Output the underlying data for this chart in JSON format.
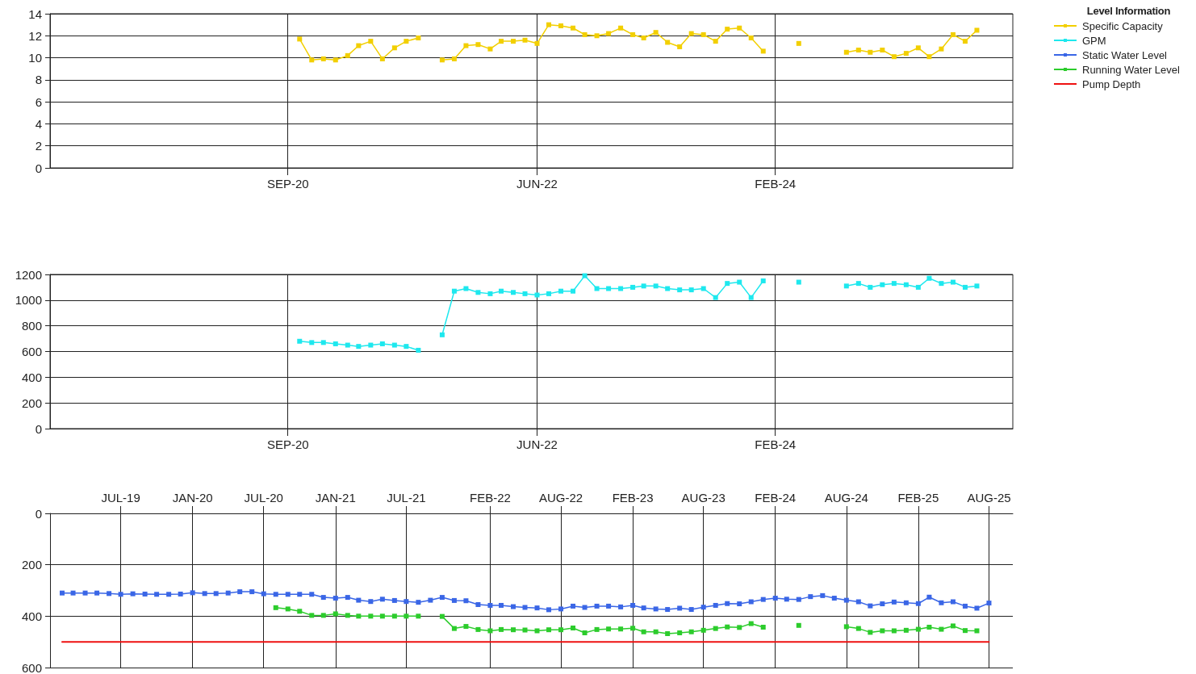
{
  "chart_data": [
    {
      "type": "line",
      "legend": "right",
      "legend_title": "Level Information",
      "grid": true,
      "marker": "square",
      "x": [
        "2020-10",
        "2020-11",
        "2020-12",
        "2021-01",
        "2021-02",
        "2021-03",
        "2021-04",
        "2021-05",
        "2021-06",
        "2021-07",
        "2021-08",
        "2021-09",
        "2021-10",
        "2021-11",
        "2021-12",
        "2022-01",
        "2022-02",
        "2022-03",
        "2022-04",
        "2022-05",
        "2022-06",
        "2022-07",
        "2022-08",
        "2022-09",
        "2022-10",
        "2022-11",
        "2022-12",
        "2023-01",
        "2023-02",
        "2023-03",
        "2023-04",
        "2023-05",
        "2023-06",
        "2023-07",
        "2023-08",
        "2023-09",
        "2023-10",
        "2023-11",
        "2023-12",
        "2024-01",
        "2024-02",
        "2024-03",
        "2024-04",
        "2024-05",
        "2024-06",
        "2024-07",
        "2024-08",
        "2024-09",
        "2024-10",
        "2024-11",
        "2024-12",
        "2025-01",
        "2025-02",
        "2025-03",
        "2025-04",
        "2025-05",
        "2025-06",
        "2025-07"
      ],
      "xlim": [
        "2019-01",
        "2025-10"
      ],
      "xticks": [
        {
          "value": "2020-09",
          "label": "SEP-20"
        },
        {
          "value": "2022-06",
          "label": "JUN-22"
        },
        {
          "value": "2024-02",
          "label": "FEB-24"
        }
      ],
      "ylim": [
        0,
        14
      ],
      "yticks": [
        0,
        2,
        4,
        6,
        8,
        10,
        12,
        14
      ],
      "series": [
        {
          "name": "Specific Capacity",
          "color": "#f2cf00",
          "values": [
            11.7,
            9.8,
            9.9,
            9.8,
            10.2,
            11.1,
            11.5,
            9.9,
            10.9,
            11.5,
            11.8,
            null,
            9.8,
            9.9,
            11.1,
            11.2,
            10.8,
            11.5,
            11.5,
            11.6,
            11.3,
            13.0,
            12.9,
            12.7,
            12.1,
            12.0,
            12.2,
            12.7,
            12.1,
            11.8,
            12.3,
            11.4,
            11.0,
            12.2,
            12.1,
            11.5,
            12.6,
            12.7,
            11.8,
            10.6,
            null,
            null,
            11.3,
            null,
            null,
            null,
            10.5,
            10.7,
            10.5,
            10.7,
            10.1,
            10.4,
            10.9,
            10.1,
            10.8,
            12.1,
            11.5,
            12.5
          ]
        }
      ]
    },
    {
      "type": "line",
      "legend": "right",
      "grid": true,
      "marker": "square",
      "x": [
        "2020-10",
        "2020-11",
        "2020-12",
        "2021-01",
        "2021-02",
        "2021-03",
        "2021-04",
        "2021-05",
        "2021-06",
        "2021-07",
        "2021-08",
        "2021-09",
        "2021-10",
        "2021-11",
        "2021-12",
        "2022-01",
        "2022-02",
        "2022-03",
        "2022-04",
        "2022-05",
        "2022-06",
        "2022-07",
        "2022-08",
        "2022-09",
        "2022-10",
        "2022-11",
        "2022-12",
        "2023-01",
        "2023-02",
        "2023-03",
        "2023-04",
        "2023-05",
        "2023-06",
        "2023-07",
        "2023-08",
        "2023-09",
        "2023-10",
        "2023-11",
        "2023-12",
        "2024-01",
        "2024-02",
        "2024-03",
        "2024-04",
        "2024-05",
        "2024-06",
        "2024-07",
        "2024-08",
        "2024-09",
        "2024-10",
        "2024-11",
        "2024-12",
        "2025-01",
        "2025-02",
        "2025-03",
        "2025-04",
        "2025-05",
        "2025-06",
        "2025-07"
      ],
      "xlim": [
        "2019-01",
        "2025-10"
      ],
      "xticks": [
        {
          "value": "2020-09",
          "label": "SEP-20"
        },
        {
          "value": "2022-06",
          "label": "JUN-22"
        },
        {
          "value": "2024-02",
          "label": "FEB-24"
        }
      ],
      "ylim": [
        0,
        1200
      ],
      "yticks": [
        0,
        200,
        400,
        600,
        800,
        1000,
        1200
      ],
      "series": [
        {
          "name": "GPM",
          "color": "#1ee8ee",
          "values": [
            680,
            670,
            670,
            660,
            650,
            640,
            650,
            660,
            650,
            640,
            610,
            null,
            730,
            1070,
            1090,
            1060,
            1050,
            1070,
            1060,
            1050,
            1040,
            1050,
            1070,
            1070,
            1190,
            1090,
            1090,
            1090,
            1100,
            1110,
            1110,
            1090,
            1080,
            1080,
            1090,
            1020,
            1130,
            1140,
            1020,
            1150,
            null,
            null,
            1140,
            null,
            null,
            null,
            1110,
            1130,
            1100,
            1120,
            1130,
            1120,
            1100,
            1170,
            1130,
            1140,
            1100,
            1110
          ]
        }
      ]
    },
    {
      "type": "line",
      "legend": "right",
      "grid": true,
      "marker": "square",
      "x": [
        "2019-02",
        "2019-03",
        "2019-04",
        "2019-05",
        "2019-06",
        "2019-07",
        "2019-08",
        "2019-09",
        "2019-10",
        "2019-11",
        "2019-12",
        "2020-01",
        "2020-02",
        "2020-03",
        "2020-04",
        "2020-05",
        "2020-06",
        "2020-07",
        "2020-08",
        "2020-09",
        "2020-10",
        "2020-11",
        "2020-12",
        "2021-01",
        "2021-02",
        "2021-03",
        "2021-04",
        "2021-05",
        "2021-06",
        "2021-07",
        "2021-08",
        "2021-09",
        "2021-10",
        "2021-11",
        "2021-12",
        "2022-01",
        "2022-02",
        "2022-03",
        "2022-04",
        "2022-05",
        "2022-06",
        "2022-07",
        "2022-08",
        "2022-09",
        "2022-10",
        "2022-11",
        "2022-12",
        "2023-01",
        "2023-02",
        "2023-03",
        "2023-04",
        "2023-05",
        "2023-06",
        "2023-07",
        "2023-08",
        "2023-09",
        "2023-10",
        "2023-11",
        "2023-12",
        "2024-01",
        "2024-02",
        "2024-03",
        "2024-04",
        "2024-05",
        "2024-06",
        "2024-07",
        "2024-08",
        "2024-09",
        "2024-10",
        "2024-11",
        "2024-12",
        "2025-01",
        "2025-02",
        "2025-03",
        "2025-04",
        "2025-05",
        "2025-06",
        "2025-07",
        "2025-08"
      ],
      "xlim": [
        "2019-01",
        "2025-10"
      ],
      "xticks": [
        {
          "value": "2019-07",
          "label": "JUL-19"
        },
        {
          "value": "2020-01",
          "label": "JAN-20"
        },
        {
          "value": "2020-07",
          "label": "JUL-20"
        },
        {
          "value": "2021-01",
          "label": "JAN-21"
        },
        {
          "value": "2021-07",
          "label": "JUL-21"
        },
        {
          "value": "2022-02",
          "label": "FEB-22"
        },
        {
          "value": "2022-08",
          "label": "AUG-22"
        },
        {
          "value": "2023-02",
          "label": "FEB-23"
        },
        {
          "value": "2023-08",
          "label": "AUG-23"
        },
        {
          "value": "2024-02",
          "label": "FEB-24"
        },
        {
          "value": "2024-08",
          "label": "AUG-24"
        },
        {
          "value": "2025-02",
          "label": "FEB-25"
        },
        {
          "value": "2025-08",
          "label": "AUG-25"
        }
      ],
      "ylim": [
        600,
        0
      ],
      "yticks": [
        0,
        200,
        400,
        600
      ],
      "series": [
        {
          "name": "Static Water Level",
          "color": "#3a66e6",
          "values": [
            310,
            310,
            310,
            310,
            312,
            315,
            313,
            314,
            315,
            315,
            314,
            309,
            312,
            312,
            310,
            305,
            305,
            313,
            315,
            315,
            315,
            315,
            327,
            330,
            327,
            338,
            343,
            334,
            339,
            343,
            346,
            338,
            327,
            339,
            340,
            355,
            358,
            358,
            363,
            366,
            368,
            375,
            372,
            361,
            366,
            361,
            361,
            364,
            358,
            368,
            372,
            374,
            369,
            374,
            365,
            358,
            351,
            352,
            344,
            335,
            330,
            334,
            335,
            324,
            320,
            330,
            338,
            344,
            360,
            352,
            345,
            348,
            351,
            326,
            348,
            344,
            361,
            369,
            349
          ]
        },
        {
          "name": "Running Water Level",
          "color": "#2ccc2c",
          "values": [
            null,
            null,
            null,
            null,
            null,
            null,
            null,
            null,
            null,
            null,
            null,
            null,
            null,
            null,
            null,
            null,
            null,
            null,
            367,
            372,
            381,
            397,
            397,
            391,
            397,
            400,
            400,
            400,
            400,
            400,
            400,
            null,
            401,
            448,
            440,
            452,
            457,
            452,
            453,
            454,
            457,
            453,
            453,
            446,
            465,
            452,
            450,
            450,
            447,
            461,
            461,
            468,
            465,
            461,
            455,
            448,
            442,
            444,
            429,
            443,
            null,
            null,
            436,
            null,
            null,
            null,
            441,
            448,
            463,
            457,
            457,
            455,
            451,
            443,
            451,
            438,
            456,
            457,
            null
          ]
        },
        {
          "name": "Pump Depth",
          "color": "#ee1111",
          "marker": "none",
          "values": [
            500,
            500,
            500,
            500,
            500,
            500,
            500,
            500,
            500,
            500,
            500,
            500,
            500,
            500,
            500,
            500,
            500,
            500,
            500,
            500,
            500,
            500,
            500,
            500,
            500,
            500,
            500,
            500,
            500,
            500,
            500,
            500,
            500,
            500,
            500,
            500,
            500,
            500,
            500,
            500,
            500,
            500,
            500,
            500,
            500,
            500,
            500,
            500,
            500,
            500,
            500,
            500,
            500,
            500,
            500,
            500,
            500,
            500,
            500,
            500,
            500,
            500,
            500,
            500,
            500,
            500,
            500,
            500,
            500,
            500,
            500,
            500,
            500,
            500,
            500,
            500,
            500,
            500,
            500
          ]
        }
      ]
    }
  ]
}
